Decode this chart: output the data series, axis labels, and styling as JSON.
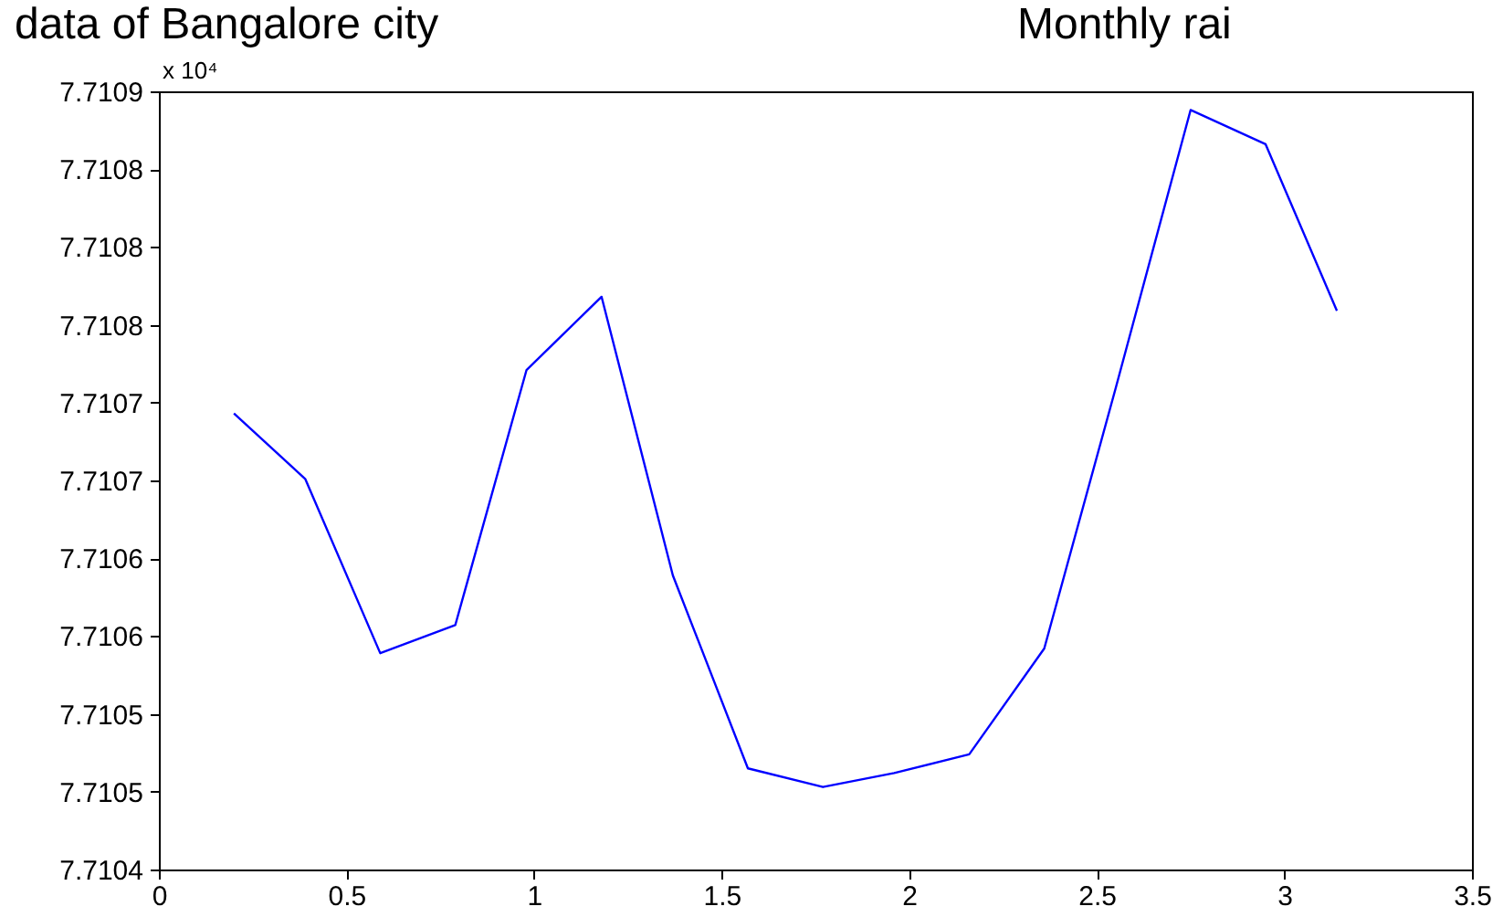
{
  "chart_data": {
    "type": "line",
    "title": "data of Bangalore city",
    "annotations": [
      "x 10⁴",
      "Monthly rai"
    ],
    "x": [
      0.2,
      0.39,
      0.59,
      0.79,
      0.98,
      1.18,
      1.37,
      1.57,
      1.77,
      1.96,
      2.16,
      2.36,
      2.55,
      2.75,
      2.95,
      3.14
    ],
    "series": [
      {
        "color": "#0000ff",
        "values": [
          7.710693,
          7.710651,
          7.710539,
          7.710557,
          7.710721,
          7.710768,
          7.710589,
          7.710465,
          7.710453,
          7.710462,
          7.710474,
          7.710542,
          7.710709,
          7.710888,
          7.710866,
          7.710759
        ]
      }
    ],
    "xlim": [
      0,
      3.5
    ],
    "xticks": [
      0,
      0.5,
      1,
      1.5,
      2,
      2.5,
      3,
      3.5
    ],
    "ylim": [
      7.7104,
      7.7109
    ],
    "yticks": [
      7.7104,
      {
        "value": 7.71045,
        "label": "7.7105"
      },
      7.7105,
      {
        "value": 7.71055,
        "label": "7.7106"
      },
      7.7106,
      {
        "value": 7.71065,
        "label": "7.7107"
      },
      7.7107,
      {
        "value": 7.71075,
        "label": "7.7108"
      },
      7.7108,
      {
        "value": 7.71085,
        "label": "7.7108"
      },
      7.7109
    ],
    "grid": false,
    "marker": "none",
    "line_style": "solid"
  }
}
